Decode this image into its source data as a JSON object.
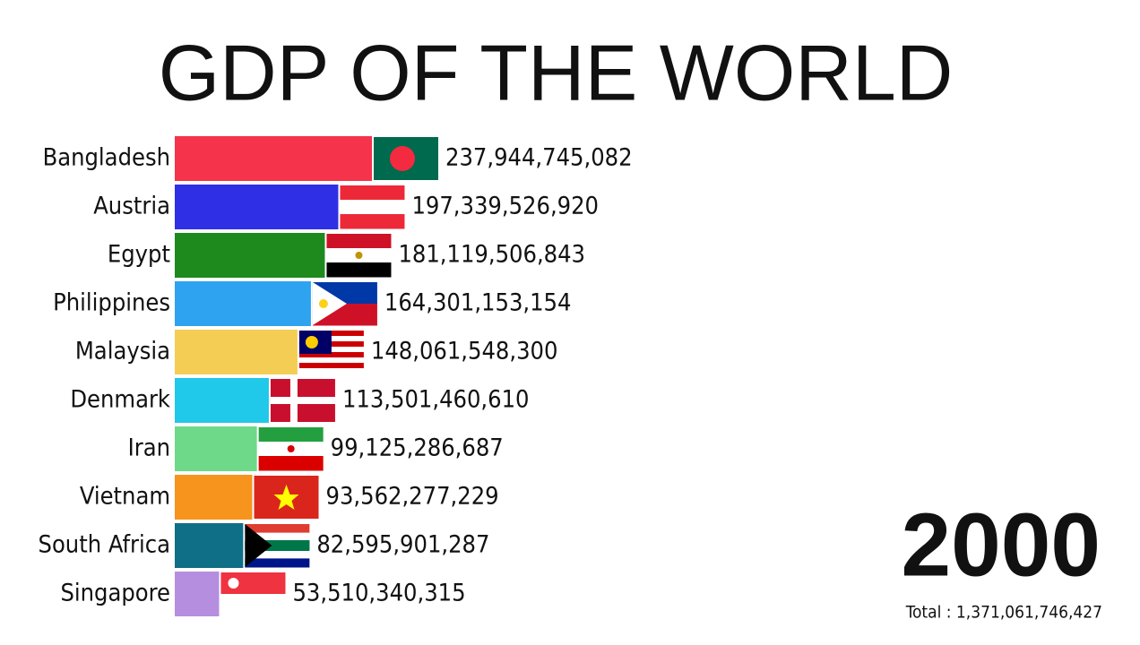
{
  "chart_data": {
    "type": "bar",
    "orientation": "horizontal",
    "title": "GDP OF THE WORLD",
    "categories": [
      "Bangladesh",
      "Austria",
      "Egypt",
      "Philippines",
      "Malaysia",
      "Denmark",
      "Iran",
      "Vietnam",
      "South Africa",
      "Singapore"
    ],
    "values": [
      237944745082,
      197339526920,
      181119506843,
      164301153154,
      148061548300,
      113501460610,
      99125286687,
      93562277229,
      82595901287,
      53510340315
    ],
    "value_labels": [
      "237,944,745,082",
      "197,339,526,920",
      "181,119,506,843",
      "164,301,153,154",
      "148,061,548,300",
      "113,501,460,610",
      "99,125,286,687",
      "93,562,277,229",
      "82,595,901,287",
      "53,510,340,315"
    ],
    "colors": [
      "#f5334a",
      "#2f2fe6",
      "#1e8a1e",
      "#2ea3f0",
      "#f4cd55",
      "#20c8ea",
      "#6fd98a",
      "#f7941d",
      "#0e6f86",
      "#b58ee0"
    ],
    "year": "2000",
    "total": "Total : 1,371,061,746,427"
  }
}
